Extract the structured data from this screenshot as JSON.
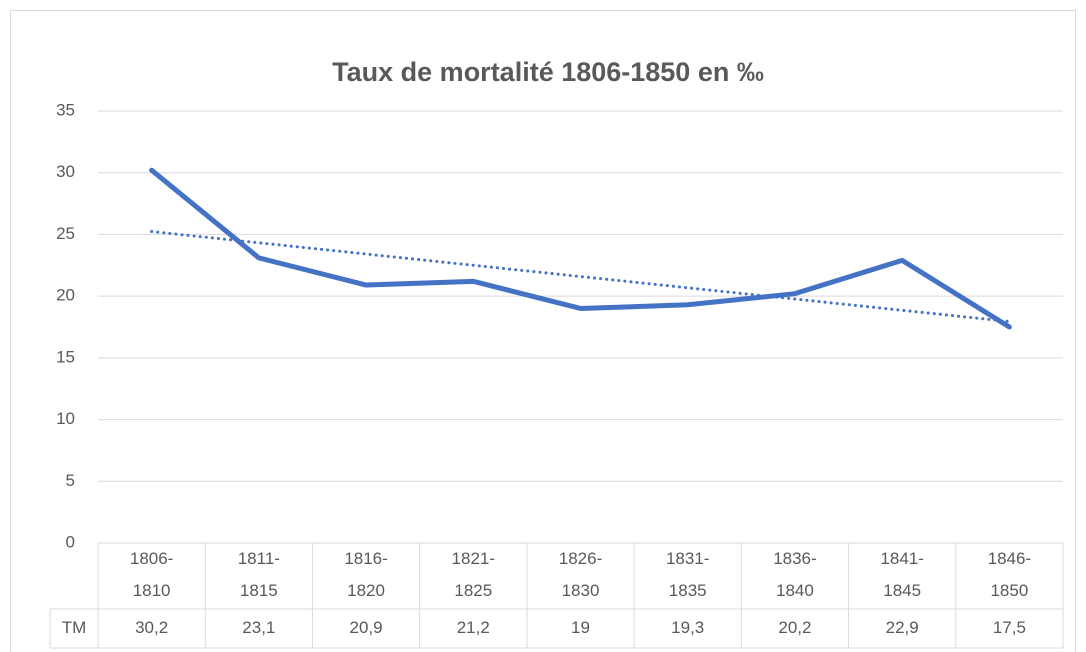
{
  "chart_data": {
    "type": "line",
    "title": "Taux de mortalité 1806-1850 en ‰",
    "categories": [
      "1806-1810",
      "1811-1815",
      "1816-1820",
      "1821-1825",
      "1826-1830",
      "1831-1835",
      "1836-1840",
      "1841-1845",
      "1846-1850"
    ],
    "series": [
      {
        "name": "TM",
        "color": "#4472c4",
        "values": [
          30.2,
          23.1,
          20.9,
          21.2,
          19,
          19.3,
          20.2,
          22.9,
          17.5
        ],
        "value_labels": [
          "30,2",
          "23,1",
          "20,9",
          "21,2",
          "19",
          "19,3",
          "20,2",
          "22,9",
          "17,5"
        ]
      }
    ],
    "trendline": "linear",
    "ylim": [
      0,
      35
    ],
    "yticks": [
      0,
      5,
      10,
      15,
      20,
      25,
      30,
      35
    ],
    "grid": true,
    "data_table": true
  }
}
